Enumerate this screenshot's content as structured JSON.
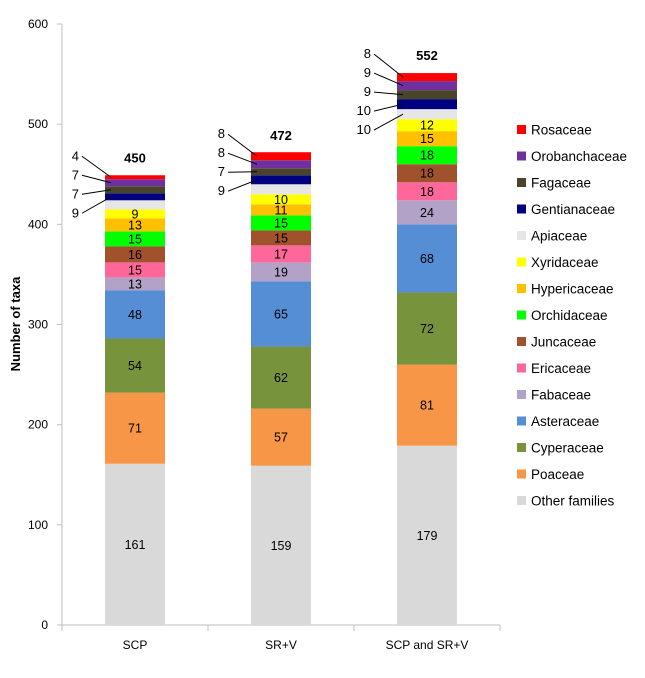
{
  "chart_data": {
    "type": "bar",
    "stacked": true,
    "title": "",
    "xlabel": "",
    "ylabel": "Number of taxa",
    "ylim": [
      0,
      600
    ],
    "yticks": [
      0,
      100,
      200,
      300,
      400,
      500,
      600
    ],
    "categories": [
      "SCP",
      "SR+V",
      "SCP and SR+V"
    ],
    "totals": [
      450,
      472,
      552
    ],
    "legend_position": "right",
    "series": [
      {
        "name": "Other families",
        "color": "#d9d9d9",
        "values": [
          161,
          159,
          179
        ]
      },
      {
        "name": "Poaceae",
        "color": "#f79646",
        "values": [
          71,
          57,
          81
        ]
      },
      {
        "name": "Cyperaceae",
        "color": "#77933c",
        "values": [
          54,
          62,
          72
        ]
      },
      {
        "name": "Asteraceae",
        "color": "#558ed5",
        "values": [
          48,
          65,
          68
        ]
      },
      {
        "name": "Fabaceae",
        "color": "#b3a2c7",
        "values": [
          13,
          19,
          24
        ]
      },
      {
        "name": "Ericaceae",
        "color": "#ff6699",
        "values": [
          15,
          17,
          18
        ]
      },
      {
        "name": "Juncaceae",
        "color": "#a0522d",
        "values": [
          16,
          15,
          18
        ]
      },
      {
        "name": "Orchidaceae",
        "color": "#00ff00",
        "values": [
          15,
          15,
          18
        ]
      },
      {
        "name": "Hypericaceae",
        "color": "#ffc000",
        "values": [
          13,
          11,
          15
        ]
      },
      {
        "name": "Xyridaceae",
        "color": "#ffff00",
        "values": [
          9,
          10,
          12
        ]
      },
      {
        "name": "Apiaceae",
        "color": "#e6e6e6",
        "values": [
          9,
          10,
          10
        ]
      },
      {
        "name": "Gentianaceae",
        "color": "#000080",
        "values": [
          7,
          9,
          10
        ]
      },
      {
        "name": "Fagaceae",
        "color": "#4a452a",
        "values": [
          7,
          7,
          9
        ]
      },
      {
        "name": "Orobanchaceae",
        "color": "#7030a0",
        "values": [
          7,
          8,
          9
        ]
      },
      {
        "name": "Rosaceae",
        "color": "#ff0000",
        "values": [
          4,
          8,
          8
        ]
      }
    ],
    "callouts": [
      [
        "9",
        "7",
        "7",
        "4"
      ],
      [
        "9",
        "7",
        "8",
        "8"
      ],
      [
        "10",
        "10",
        "9",
        "9",
        "8"
      ]
    ]
  }
}
